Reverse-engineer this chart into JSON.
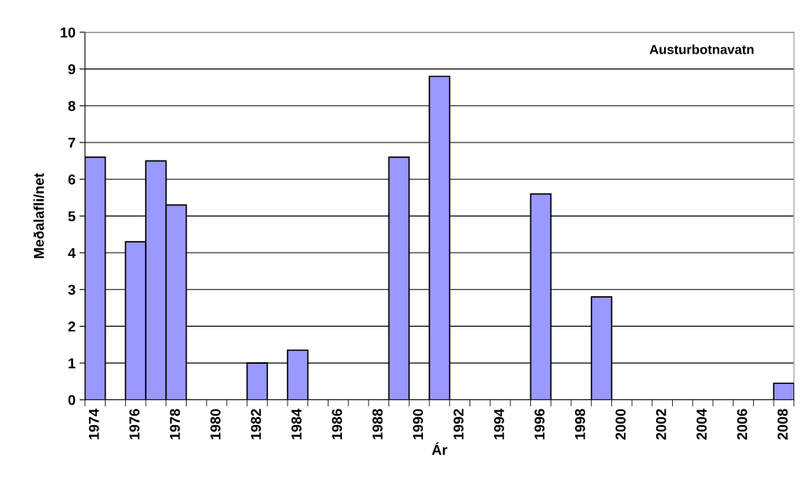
{
  "chart_data": {
    "type": "bar",
    "title": "Austurbotnavatn",
    "xlabel": "Ár",
    "ylabel": "Meðalafli/net",
    "categories": [
      "1974",
      null,
      "1976",
      null,
      "1978",
      null,
      "1980",
      null,
      "1982",
      null,
      "1984",
      null,
      "1986",
      null,
      "1988",
      null,
      "1990",
      null,
      "1992",
      null,
      "1994",
      null,
      "1996",
      null,
      "1998",
      null,
      "2000",
      null,
      "2002",
      null,
      "2004",
      null,
      "2006",
      null,
      "2008"
    ],
    "values": [
      6.6,
      null,
      4.3,
      6.5,
      5.3,
      null,
      null,
      null,
      1.0,
      null,
      1.35,
      null,
      null,
      null,
      null,
      6.6,
      null,
      8.8,
      null,
      null,
      null,
      null,
      5.6,
      null,
      null,
      2.8,
      null,
      null,
      null,
      null,
      null,
      null,
      null,
      null,
      0.45
    ],
    "color": "#9999ff",
    "ylim": [
      0,
      10
    ],
    "yticks": [
      0,
      1,
      2,
      3,
      4,
      5,
      6,
      7,
      8,
      9,
      10
    ],
    "grid": "y"
  }
}
